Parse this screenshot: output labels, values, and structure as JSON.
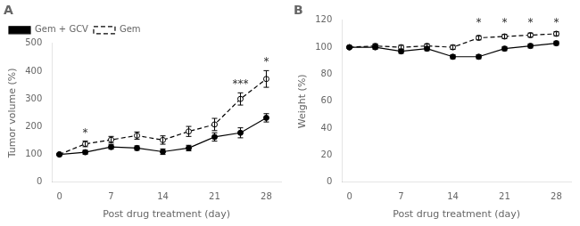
{
  "chart_data": [
    {
      "type": "line",
      "title": "A",
      "xlabel": "Post drug treatment (day)",
      "ylabel": "Tumor volume (%)",
      "x": [
        0,
        3.5,
        7,
        10.5,
        14,
        17.5,
        21,
        24.5,
        28
      ],
      "xlim": [
        -1,
        30
      ],
      "xticks": [
        0,
        7,
        14,
        21,
        28
      ],
      "ylim": [
        0,
        500
      ],
      "yticks": [
        0,
        100,
        200,
        300,
        400,
        500
      ],
      "grid": false,
      "legend": "upper left",
      "series": [
        {
          "name": "Gem + GCV",
          "color": "#000000",
          "line_style": "solid",
          "marker": "circle",
          "values": [
            100,
            108,
            127,
            123,
            110,
            123,
            163,
            178,
            232
          ],
          "errors": [
            2,
            7,
            8,
            8,
            10,
            10,
            15,
            18,
            15
          ]
        },
        {
          "name": "Gem",
          "color": "#000000",
          "line_style": "dashed",
          "marker": "open_circle",
          "values": [
            100,
            138,
            153,
            168,
            152,
            183,
            208,
            300,
            372
          ],
          "errors": [
            2,
            10,
            12,
            13,
            15,
            18,
            22,
            22,
            30
          ]
        }
      ],
      "annotations": [
        {
          "x": 3.5,
          "y": 158,
          "text": "*"
        },
        {
          "x": 24.5,
          "y": 332,
          "text": "***"
        },
        {
          "x": 28,
          "y": 412,
          "text": "*"
        }
      ]
    },
    {
      "type": "line",
      "title": "B",
      "xlabel": "Post drug treatment (day)",
      "ylabel": "Weight (%)",
      "x": [
        0,
        3.5,
        7,
        10.5,
        14,
        17.5,
        21,
        24.5,
        28
      ],
      "xlim": [
        -1,
        30
      ],
      "xticks": [
        0,
        7,
        14,
        21,
        28
      ],
      "ylim": [
        0,
        120
      ],
      "yticks": [
        0,
        20,
        40,
        60,
        80,
        100,
        120
      ],
      "grid": false,
      "series": [
        {
          "color": "#000000",
          "line_style": "solid",
          "marker": "circle",
          "values": [
            100,
            100,
            97,
            99,
            93,
            93,
            99,
            101,
            103
          ],
          "errors": [
            0.5,
            1.5,
            1.5,
            1.5,
            1.5,
            1.5,
            1.5,
            1.5,
            1.5
          ]
        },
        {
          "color": "#000000",
          "line_style": "dashed",
          "marker": "open_circle",
          "values": [
            100,
            101,
            100,
            101,
            100,
            107,
            108,
            109,
            110
          ],
          "errors": [
            0.5,
            1.5,
            1.5,
            1.5,
            1.5,
            1.5,
            1.5,
            1.5,
            1.5
          ]
        }
      ],
      "annotations": [
        {
          "x": 17.5,
          "y": 114,
          "text": "*"
        },
        {
          "x": 21,
          "y": 114,
          "text": "*"
        },
        {
          "x": 24.5,
          "y": 114,
          "text": "*"
        },
        {
          "x": 28,
          "y": 114,
          "text": "*"
        }
      ]
    }
  ]
}
